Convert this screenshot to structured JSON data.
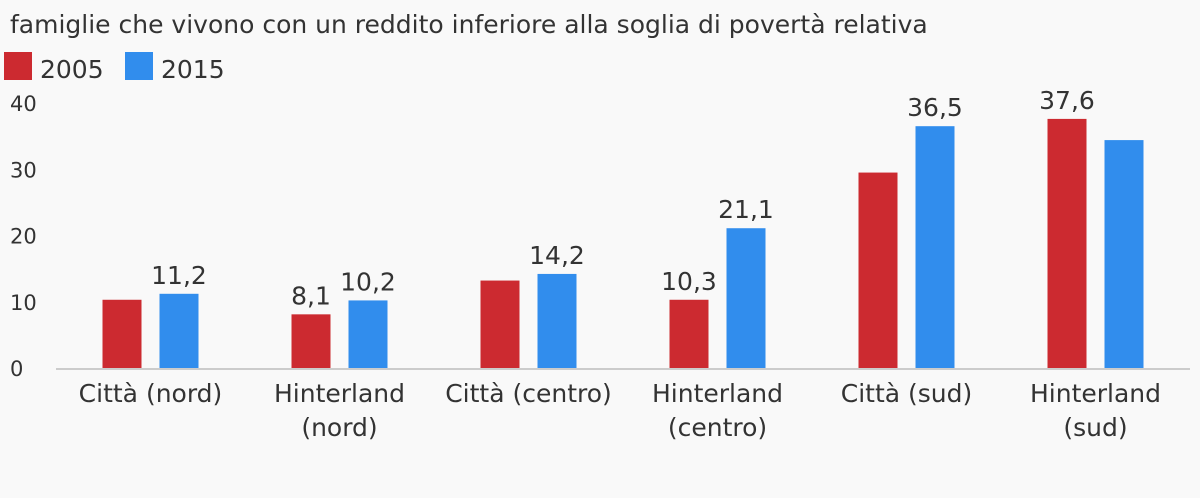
{
  "chart_data": {
    "type": "bar",
    "title": "famiglie che vivono con un reddito inferiore alla soglia di povertà relativa",
    "categories": [
      [
        "Città (nord)"
      ],
      [
        "Hinterland",
        "(nord)"
      ],
      [
        "Città (centro)"
      ],
      [
        "Hinterland",
        "(centro)"
      ],
      [
        "Città (sud)"
      ],
      [
        "Hinterland",
        "(sud)"
      ]
    ],
    "series": [
      {
        "name": "2005",
        "color": "#cc2a30",
        "values": [
          10.3,
          8.1,
          13.2,
          10.3,
          29.5,
          37.6
        ],
        "labels": [
          "",
          "8,1",
          "",
          "10,3",
          "",
          "37,6"
        ]
      },
      {
        "name": "2015",
        "color": "#318ded",
        "values": [
          11.2,
          10.2,
          14.2,
          21.1,
          36.5,
          34.4
        ],
        "labels": [
          "11,2",
          "10,2",
          "14,2",
          "21,1",
          "36,5",
          ""
        ]
      }
    ],
    "ylim": [
      0,
      40
    ],
    "yticks": [
      0,
      10,
      20,
      30,
      40
    ],
    "legend": "top-left",
    "grid": false
  }
}
